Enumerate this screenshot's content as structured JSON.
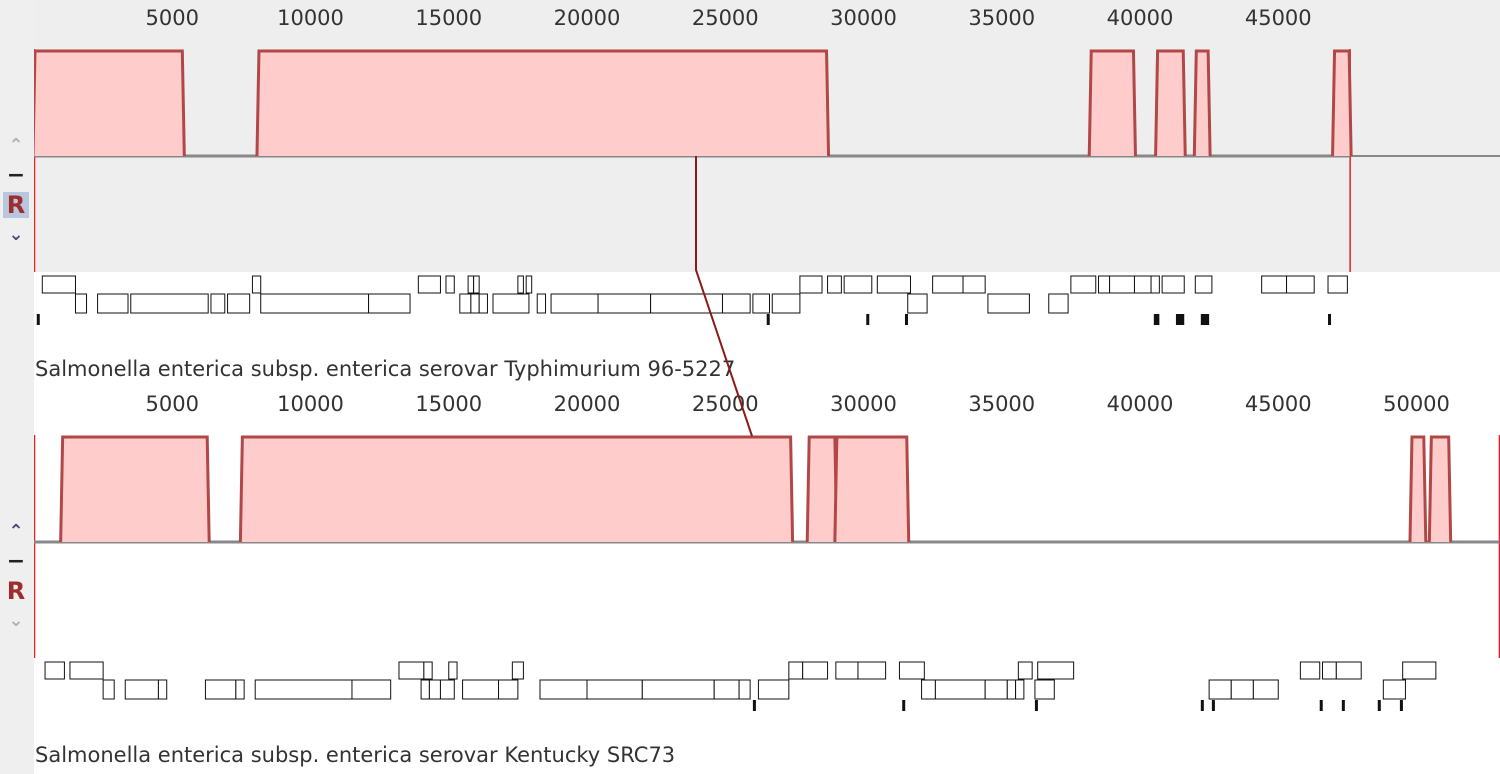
{
  "colors": {
    "bg_top": "#eeeeee",
    "bg_bottom": "#ffffff",
    "fill": "#ffcccc",
    "edge": "#b24747",
    "gap": "#888888",
    "spike": "#ee5555",
    "connector": "#8b1a1a"
  },
  "icons": {
    "up": "chevron-up-icon",
    "down": "chevron-down-icon",
    "minus": "minus-icon",
    "reset": "reset-icon"
  },
  "genomes": [
    {
      "label": "Salmonella enterica subsp. enterica serovar Typhimurium 96-5227",
      "length": 47600,
      "ticks": [
        "5000",
        "10000",
        "15000",
        "20000",
        "25000",
        "30000",
        "35000",
        "40000",
        "45000"
      ],
      "controls": {
        "up": "⌃",
        "minus": "−",
        "reset": "R",
        "down": "⌄"
      },
      "blocks": [
        [
          0,
          5400
        ],
        [
          8100,
          28700
        ],
        [
          38200,
          39800
        ],
        [
          40600,
          41600
        ],
        [
          42000,
          42500
        ],
        [
          47000,
          47600
        ]
      ],
      "features_row1": [
        [
          300,
          1500
        ],
        [
          7900,
          8200
        ],
        [
          13900,
          14700
        ],
        [
          14900,
          15200
        ],
        [
          15700,
          15900
        ],
        [
          15900,
          16100
        ],
        [
          17500,
          17700
        ],
        [
          17800,
          18000
        ],
        [
          27700,
          28500
        ],
        [
          28700,
          29200
        ],
        [
          29300,
          30300
        ],
        [
          30500,
          31700
        ],
        [
          32500,
          33600
        ],
        [
          33600,
          34400
        ],
        [
          37500,
          38400
        ],
        [
          38500,
          38900
        ],
        [
          38900,
          39800
        ],
        [
          39800,
          40400
        ],
        [
          40400,
          40700
        ],
        [
          40800,
          41600
        ],
        [
          42000,
          42600
        ],
        [
          44400,
          45300
        ],
        [
          45300,
          46300
        ],
        [
          46800,
          47500
        ]
      ],
      "features_row2": [
        [
          1500,
          1900
        ],
        [
          2300,
          3400
        ],
        [
          3500,
          6300
        ],
        [
          6400,
          6900
        ],
        [
          7000,
          7800
        ],
        [
          8200,
          12100
        ],
        [
          12100,
          13600
        ],
        [
          15400,
          15800
        ],
        [
          15800,
          16100
        ],
        [
          16100,
          16400
        ],
        [
          16600,
          17900
        ],
        [
          18200,
          18500
        ],
        [
          18700,
          20400
        ],
        [
          20400,
          22300
        ],
        [
          22300,
          24900
        ],
        [
          24900,
          25900
        ],
        [
          26000,
          26600
        ],
        [
          26700,
          27700
        ],
        [
          31600,
          32300
        ],
        [
          34500,
          36000
        ],
        [
          36700,
          37400
        ]
      ],
      "markers": [
        [
          100,
          200
        ],
        [
          26500,
          26600
        ],
        [
          30100,
          30200
        ],
        [
          31500,
          31600
        ],
        [
          40500,
          40700
        ],
        [
          41300,
          41600
        ],
        [
          42200,
          42500
        ],
        [
          46800,
          46900
        ]
      ]
    },
    {
      "label": "Salmonella enterica subsp. enterica serovar Kentucky SRC73",
      "length": 53000,
      "ticks": [
        "5000",
        "10000",
        "15000",
        "20000",
        "25000",
        "30000",
        "35000",
        "40000",
        "45000",
        "50000"
      ],
      "controls": {
        "up": "⌃",
        "minus": "−",
        "reset": "R",
        "down": "⌄"
      },
      "blocks": [
        [
          1000,
          6300
        ],
        [
          7500,
          27400
        ],
        [
          28000,
          29000
        ],
        [
          29000,
          31600
        ],
        [
          49800,
          50300
        ],
        [
          50500,
          51200
        ]
      ],
      "features_row1": [
        [
          400,
          1100
        ],
        [
          1300,
          2500
        ],
        [
          13200,
          14100
        ],
        [
          14100,
          14400
        ],
        [
          15000,
          15300
        ],
        [
          17300,
          17700
        ],
        [
          27300,
          27800
        ],
        [
          27800,
          28700
        ],
        [
          29000,
          29800
        ],
        [
          29800,
          30800
        ],
        [
          31300,
          32200
        ],
        [
          35600,
          36100
        ],
        [
          36300,
          37600
        ],
        [
          45800,
          46500
        ],
        [
          46600,
          47100
        ],
        [
          47100,
          48000
        ],
        [
          49500,
          50700
        ]
      ],
      "features_row2": [
        [
          2500,
          2900
        ],
        [
          3300,
          4500
        ],
        [
          4500,
          4800
        ],
        [
          6200,
          7300
        ],
        [
          7300,
          7600
        ],
        [
          8000,
          11500
        ],
        [
          11500,
          12900
        ],
        [
          14000,
          14300
        ],
        [
          14300,
          14700
        ],
        [
          14700,
          15200
        ],
        [
          15500,
          16800
        ],
        [
          16800,
          17500
        ],
        [
          18300,
          20000
        ],
        [
          20000,
          22000
        ],
        [
          22000,
          24600
        ],
        [
          24600,
          25500
        ],
        [
          25500,
          25900
        ],
        [
          26200,
          27300
        ],
        [
          32100,
          32600
        ],
        [
          32600,
          34400
        ],
        [
          34400,
          35200
        ],
        [
          35200,
          35500
        ],
        [
          35500,
          35800
        ],
        [
          36200,
          36900
        ],
        [
          42500,
          43300
        ],
        [
          43300,
          44100
        ],
        [
          44100,
          45000
        ],
        [
          48800,
          49600
        ]
      ],
      "markers": [
        [
          26000,
          26100
        ],
        [
          31400,
          31500
        ],
        [
          36200,
          36300
        ],
        [
          42200,
          42300
        ],
        [
          42600,
          42700
        ],
        [
          46500,
          46600
        ],
        [
          47300,
          47400
        ],
        [
          48600,
          48700
        ],
        [
          49400,
          49500
        ]
      ]
    }
  ]
}
